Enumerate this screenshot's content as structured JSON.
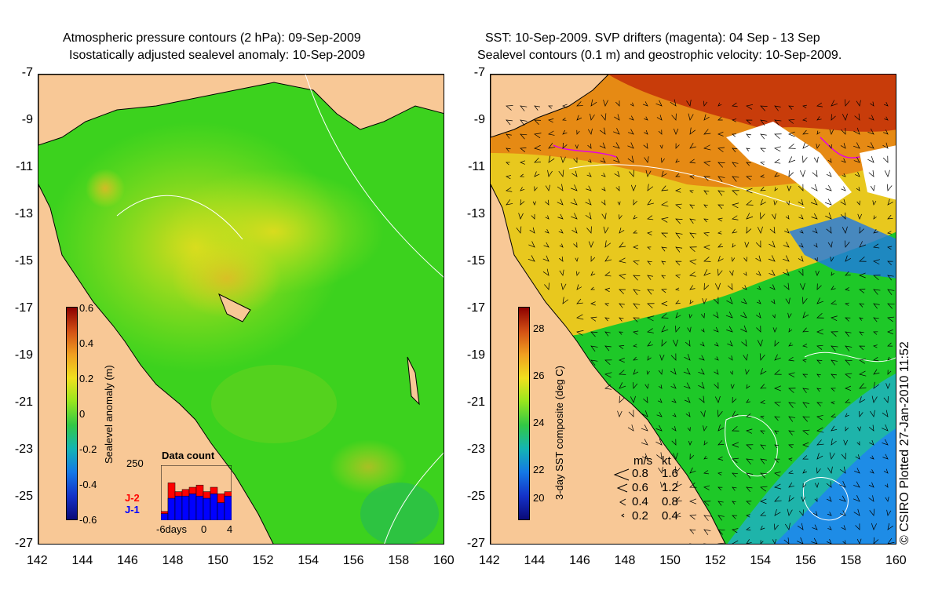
{
  "left_panel": {
    "title_line1": "Atmospheric pressure contours (2 hPa): 09-Sep-2009",
    "title_line2": "Isostatically adjusted sealevel anomaly: 10-Sep-2009",
    "colorbar": {
      "label": "Sealevel anomaly (m)",
      "ticks": [
        "0.6",
        "0.4",
        "0.2",
        "0",
        "-0.2",
        "-0.4",
        "-0.6"
      ]
    },
    "inset": {
      "title": "Data count",
      "ymax_label": "250",
      "x_labels": [
        "-6days",
        "0",
        "4"
      ],
      "series": [
        {
          "name": "J-2",
          "color": "#ff0000",
          "values": [
            40,
            170,
            130,
            140,
            150,
            160,
            130,
            150,
            120,
            130
          ]
        },
        {
          "name": "J-1",
          "color": "#0000ff",
          "values": [
            30,
            100,
            110,
            110,
            120,
            110,
            100,
            120,
            80,
            110
          ]
        }
      ]
    }
  },
  "right_panel": {
    "title_line1": "SST: 10-Sep-2009. SVP drifters (magenta): 04 Sep - 13 Sep",
    "title_line2": "Sealevel contours (0.1 m) and geostrophic velocity: 10-Sep-2009.",
    "colorbar": {
      "label": "3-day SST composite (deg C)",
      "ticks": [
        "28",
        "26",
        "24",
        "22",
        "20"
      ]
    },
    "velocity_legend": {
      "header_ms": "m/s",
      "header_kt": "kt",
      "rows": [
        {
          "ms": "0.8",
          "kt": "1.6"
        },
        {
          "ms": "0.6",
          "kt": "1.2"
        },
        {
          "ms": "0.4",
          "kt": "0.8"
        },
        {
          "ms": "0.2",
          "kt": "0.4"
        }
      ]
    }
  },
  "axes": {
    "lon_ticks": [
      "142",
      "144",
      "146",
      "148",
      "150",
      "152",
      "154",
      "156",
      "158",
      "160"
    ],
    "lat_ticks": [
      "-7",
      "-9",
      "-11",
      "-13",
      "-15",
      "-17",
      "-19",
      "-21",
      "-23",
      "-25",
      "-27"
    ]
  },
  "credit": "© CSIRO Plotted 27-Jan-2010 11:52",
  "colors": {
    "land": "#f8c896",
    "sla_base": "#3cd21e",
    "sst_base": "#1ec828"
  }
}
